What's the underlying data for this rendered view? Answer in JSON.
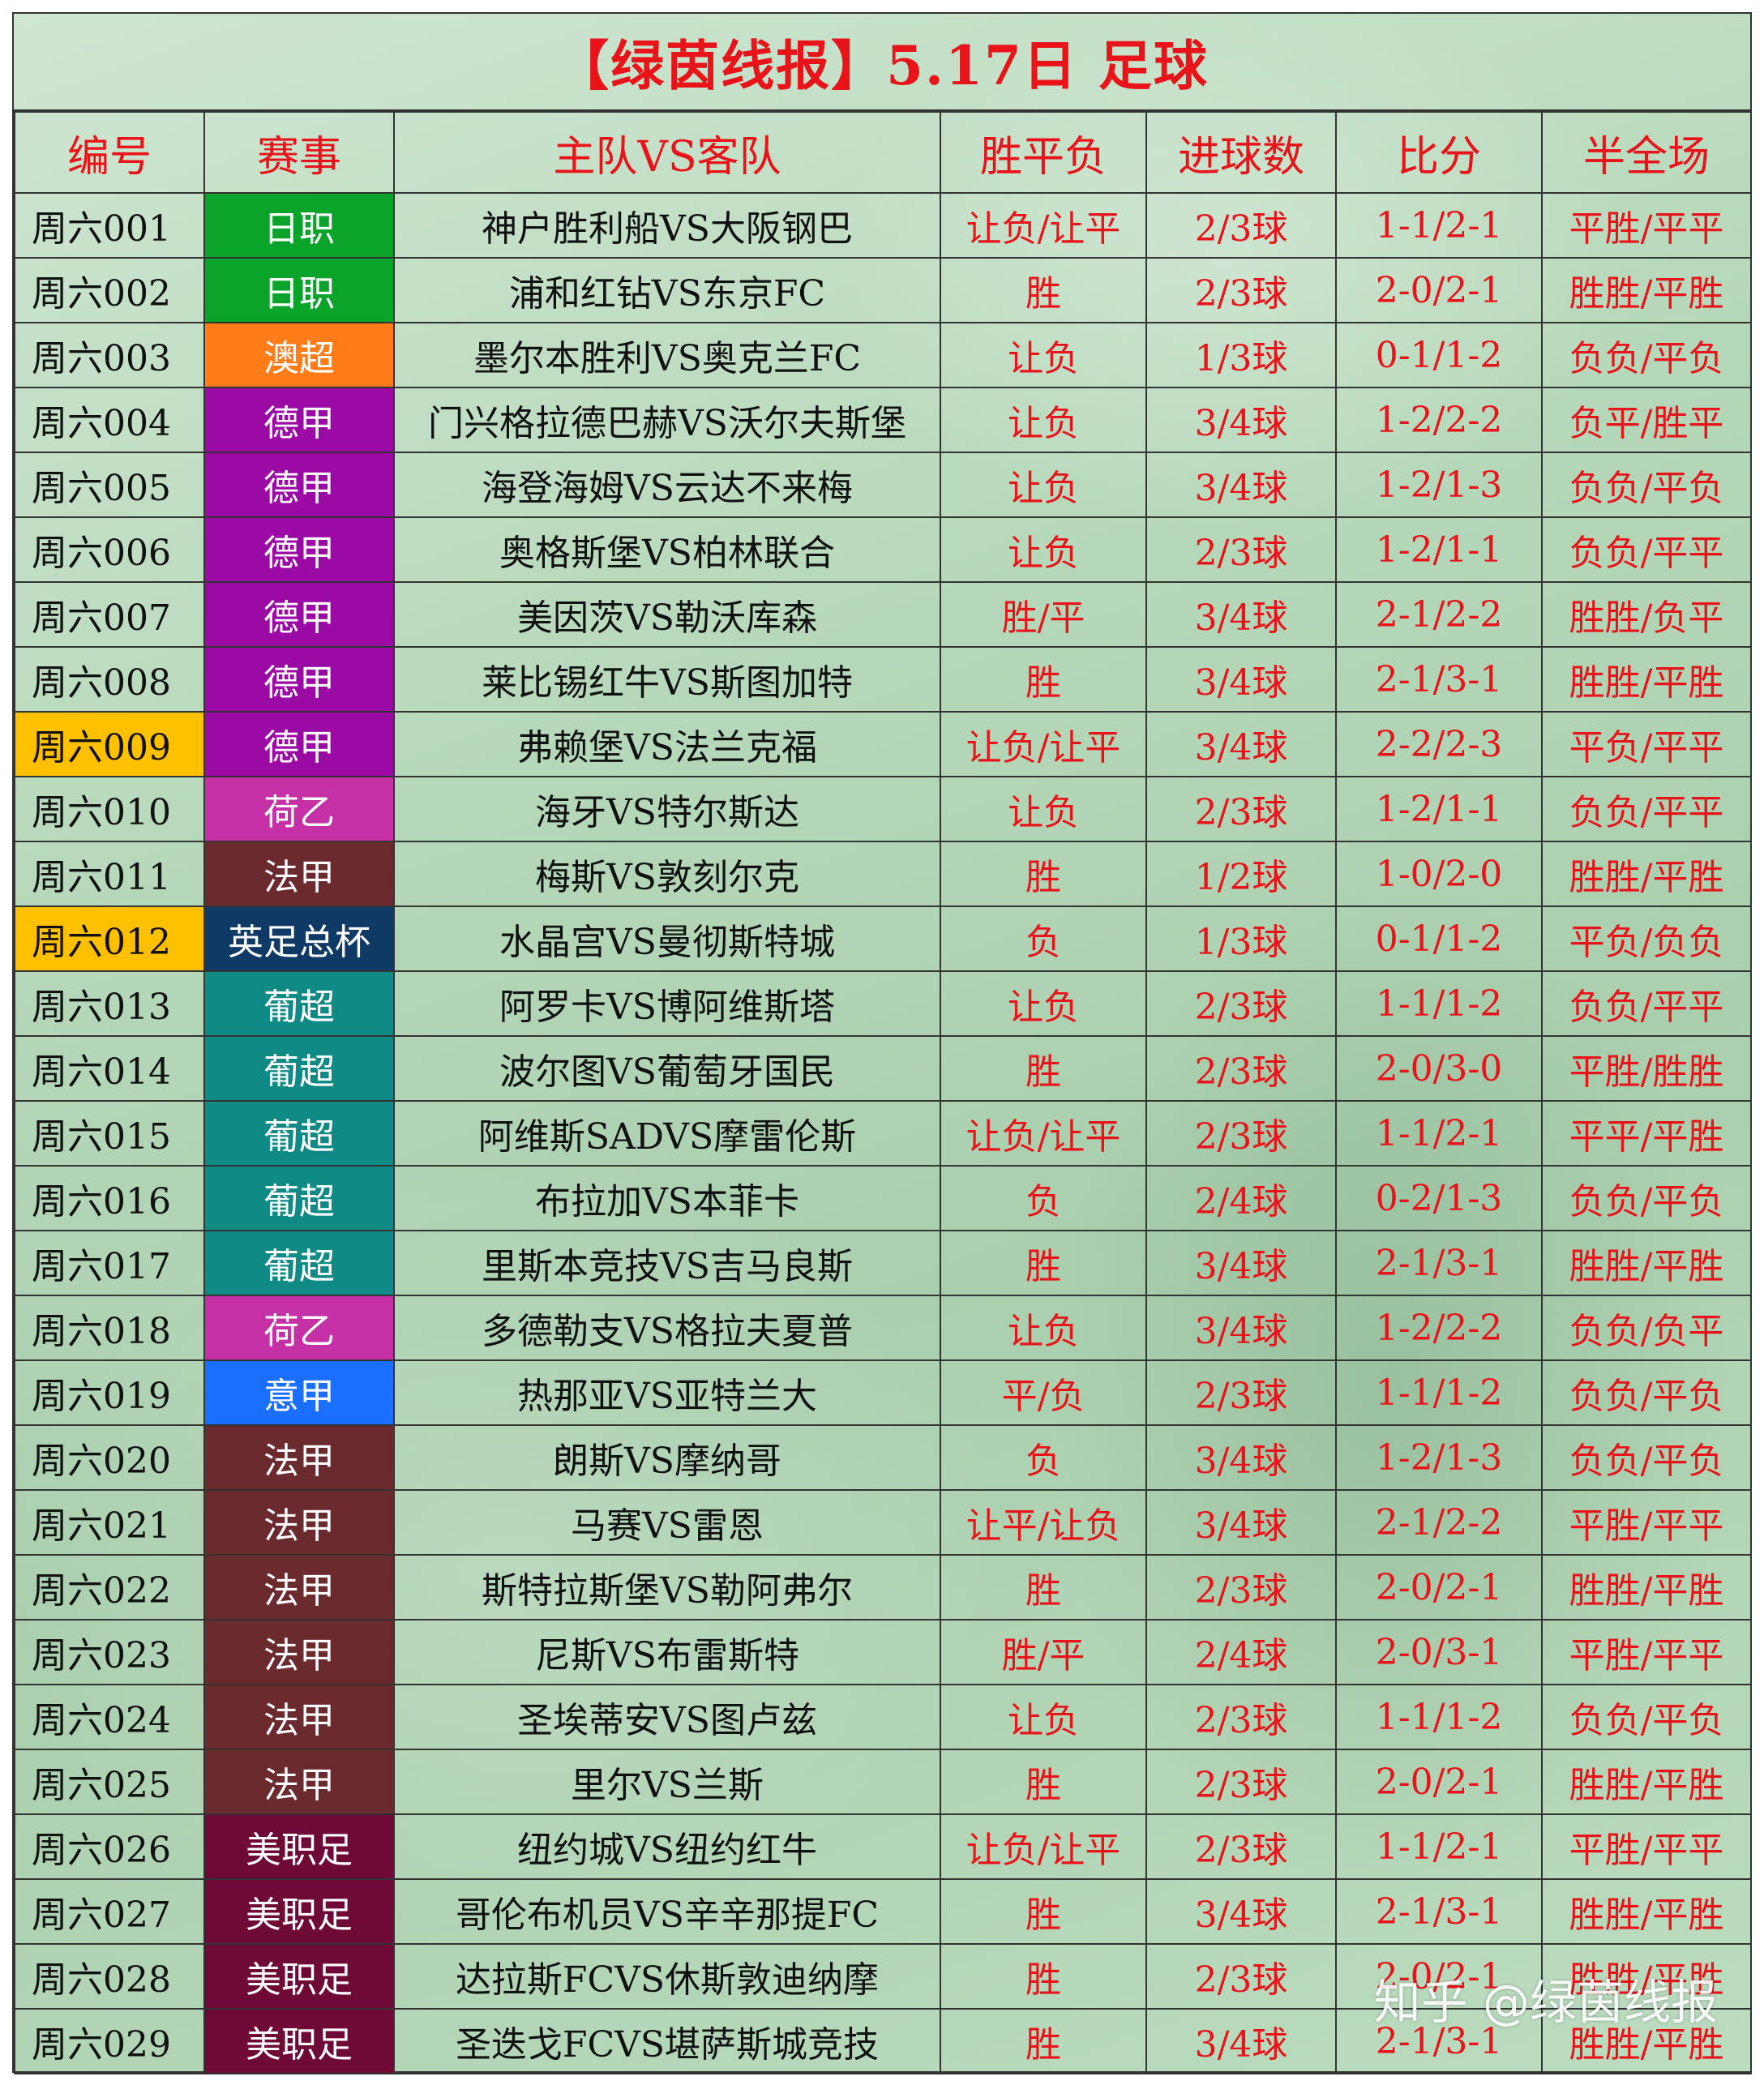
{
  "title": "【绿茵线报】5.17日 足球",
  "headers": [
    "编号",
    "赛事",
    "主队VS客队",
    "胜平负",
    "进球数",
    "比分",
    "半全场"
  ],
  "league_colors": {
    "日职": "#0aa42a",
    "澳超": "#ff7c19",
    "德甲": "#9c0aa6",
    "荷乙": "#c530a6",
    "法甲": "#6b2a2e",
    "英足总杯": "#0f3a66",
    "葡超": "#0f8a84",
    "意甲": "#1a6fff",
    "美职足": "#6e0a35"
  },
  "highlight_color": "#ffc000",
  "rows": [
    {
      "id": "周六001",
      "league": "日职",
      "match": "神户胜利船VS大阪钢巴",
      "result": "让负/让平",
      "goals": "2/3球",
      "score": "1-1/2-1",
      "half_full": "平胜/平平",
      "highlight": false
    },
    {
      "id": "周六002",
      "league": "日职",
      "match": "浦和红钻VS东京FC",
      "result": "胜",
      "goals": "2/3球",
      "score": "2-0/2-1",
      "half_full": "胜胜/平胜",
      "highlight": false
    },
    {
      "id": "周六003",
      "league": "澳超",
      "match": "墨尔本胜利VS奥克兰FC",
      "result": "让负",
      "goals": "1/3球",
      "score": "0-1/1-2",
      "half_full": "负负/平负",
      "highlight": false
    },
    {
      "id": "周六004",
      "league": "德甲",
      "match": "门兴格拉德巴赫VS沃尔夫斯堡",
      "result": "让负",
      "goals": "3/4球",
      "score": "1-2/2-2",
      "half_full": "负平/胜平",
      "highlight": false
    },
    {
      "id": "周六005",
      "league": "德甲",
      "match": "海登海姆VS云达不来梅",
      "result": "让负",
      "goals": "3/4球",
      "score": "1-2/1-3",
      "half_full": "负负/平负",
      "highlight": false
    },
    {
      "id": "周六006",
      "league": "德甲",
      "match": "奥格斯堡VS柏林联合",
      "result": "让负",
      "goals": "2/3球",
      "score": "1-2/1-1",
      "half_full": "负负/平平",
      "highlight": false
    },
    {
      "id": "周六007",
      "league": "德甲",
      "match": "美因茨VS勒沃库森",
      "result": "胜/平",
      "goals": "3/4球",
      "score": "2-1/2-2",
      "half_full": "胜胜/负平",
      "highlight": false
    },
    {
      "id": "周六008",
      "league": "德甲",
      "match": "莱比锡红牛VS斯图加特",
      "result": "胜",
      "goals": "3/4球",
      "score": "2-1/3-1",
      "half_full": "胜胜/平胜",
      "highlight": false
    },
    {
      "id": "周六009",
      "league": "德甲",
      "match": "弗赖堡VS法兰克福",
      "result": "让负/让平",
      "goals": "3/4球",
      "score": "2-2/2-3",
      "half_full": "平负/平平",
      "highlight": true
    },
    {
      "id": "周六010",
      "league": "荷乙",
      "match": "海牙VS特尔斯达",
      "result": "让负",
      "goals": "2/3球",
      "score": "1-2/1-1",
      "half_full": "负负/平平",
      "highlight": false
    },
    {
      "id": "周六011",
      "league": "法甲",
      "match": "梅斯VS敦刻尔克",
      "result": "胜",
      "goals": "1/2球",
      "score": "1-0/2-0",
      "half_full": "胜胜/平胜",
      "highlight": false
    },
    {
      "id": "周六012",
      "league": "英足总杯",
      "match": "水晶宫VS曼彻斯特城",
      "result": "负",
      "goals": "1/3球",
      "score": "0-1/1-2",
      "half_full": "平负/负负",
      "highlight": true
    },
    {
      "id": "周六013",
      "league": "葡超",
      "match": "阿罗卡VS博阿维斯塔",
      "result": "让负",
      "goals": "2/3球",
      "score": "1-1/1-2",
      "half_full": "负负/平平",
      "highlight": false
    },
    {
      "id": "周六014",
      "league": "葡超",
      "match": "波尔图VS葡萄牙国民",
      "result": "胜",
      "goals": "2/3球",
      "score": "2-0/3-0",
      "half_full": "平胜/胜胜",
      "highlight": false
    },
    {
      "id": "周六015",
      "league": "葡超",
      "match": "阿维斯SADVS摩雷伦斯",
      "result": "让负/让平",
      "goals": "2/3球",
      "score": "1-1/2-1",
      "half_full": "平平/平胜",
      "highlight": false
    },
    {
      "id": "周六016",
      "league": "葡超",
      "match": "布拉加VS本菲卡",
      "result": "负",
      "goals": "2/4球",
      "score": "0-2/1-3",
      "half_full": "负负/平负",
      "highlight": false
    },
    {
      "id": "周六017",
      "league": "葡超",
      "match": "里斯本竞技VS吉马良斯",
      "result": "胜",
      "goals": "3/4球",
      "score": "2-1/3-1",
      "half_full": "胜胜/平胜",
      "highlight": false
    },
    {
      "id": "周六018",
      "league": "荷乙",
      "match": "多德勒支VS格拉夫夏普",
      "result": "让负",
      "goals": "3/4球",
      "score": "1-2/2-2",
      "half_full": "负负/负平",
      "highlight": false
    },
    {
      "id": "周六019",
      "league": "意甲",
      "match": "热那亚VS亚特兰大",
      "result": "平/负",
      "goals": "2/3球",
      "score": "1-1/1-2",
      "half_full": "负负/平负",
      "highlight": false
    },
    {
      "id": "周六020",
      "league": "法甲",
      "match": "朗斯VS摩纳哥",
      "result": "负",
      "goals": "3/4球",
      "score": "1-2/1-3",
      "half_full": "负负/平负",
      "highlight": false
    },
    {
      "id": "周六021",
      "league": "法甲",
      "match": "马赛VS雷恩",
      "result": "让平/让负",
      "goals": "3/4球",
      "score": "2-1/2-2",
      "half_full": "平胜/平平",
      "highlight": false
    },
    {
      "id": "周六022",
      "league": "法甲",
      "match": "斯特拉斯堡VS勒阿弗尔",
      "result": "胜",
      "goals": "2/3球",
      "score": "2-0/2-1",
      "half_full": "胜胜/平胜",
      "highlight": false
    },
    {
      "id": "周六023",
      "league": "法甲",
      "match": "尼斯VS布雷斯特",
      "result": "胜/平",
      "goals": "2/4球",
      "score": "2-0/3-1",
      "half_full": "平胜/平平",
      "highlight": false
    },
    {
      "id": "周六024",
      "league": "法甲",
      "match": "圣埃蒂安VS图卢兹",
      "result": "让负",
      "goals": "2/3球",
      "score": "1-1/1-2",
      "half_full": "负负/平负",
      "highlight": false
    },
    {
      "id": "周六025",
      "league": "法甲",
      "match": "里尔VS兰斯",
      "result": "胜",
      "goals": "2/3球",
      "score": "2-0/2-1",
      "half_full": "胜胜/平胜",
      "highlight": false
    },
    {
      "id": "周六026",
      "league": "美职足",
      "match": "纽约城VS纽约红牛",
      "result": "让负/让平",
      "goals": "2/3球",
      "score": "1-1/2-1",
      "half_full": "平胜/平平",
      "highlight": false
    },
    {
      "id": "周六027",
      "league": "美职足",
      "match": "哥伦布机员VS辛辛那提FC",
      "result": "胜",
      "goals": "3/4球",
      "score": "2-1/3-1",
      "half_full": "胜胜/平胜",
      "highlight": false
    },
    {
      "id": "周六028",
      "league": "美职足",
      "match": "达拉斯FCVS休斯敦迪纳摩",
      "result": "胜",
      "goals": "2/3球",
      "score": "2-0/2-1",
      "half_full": "胜胜/平胜",
      "highlight": false
    },
    {
      "id": "周六029",
      "league": "美职足",
      "match": "圣迭戈FCVS堪萨斯城竞技",
      "result": "胜",
      "goals": "3/4球",
      "score": "2-1/3-1",
      "half_full": "胜胜/平胜",
      "highlight": false
    }
  ],
  "watermark": "知乎 @绿茵线报"
}
